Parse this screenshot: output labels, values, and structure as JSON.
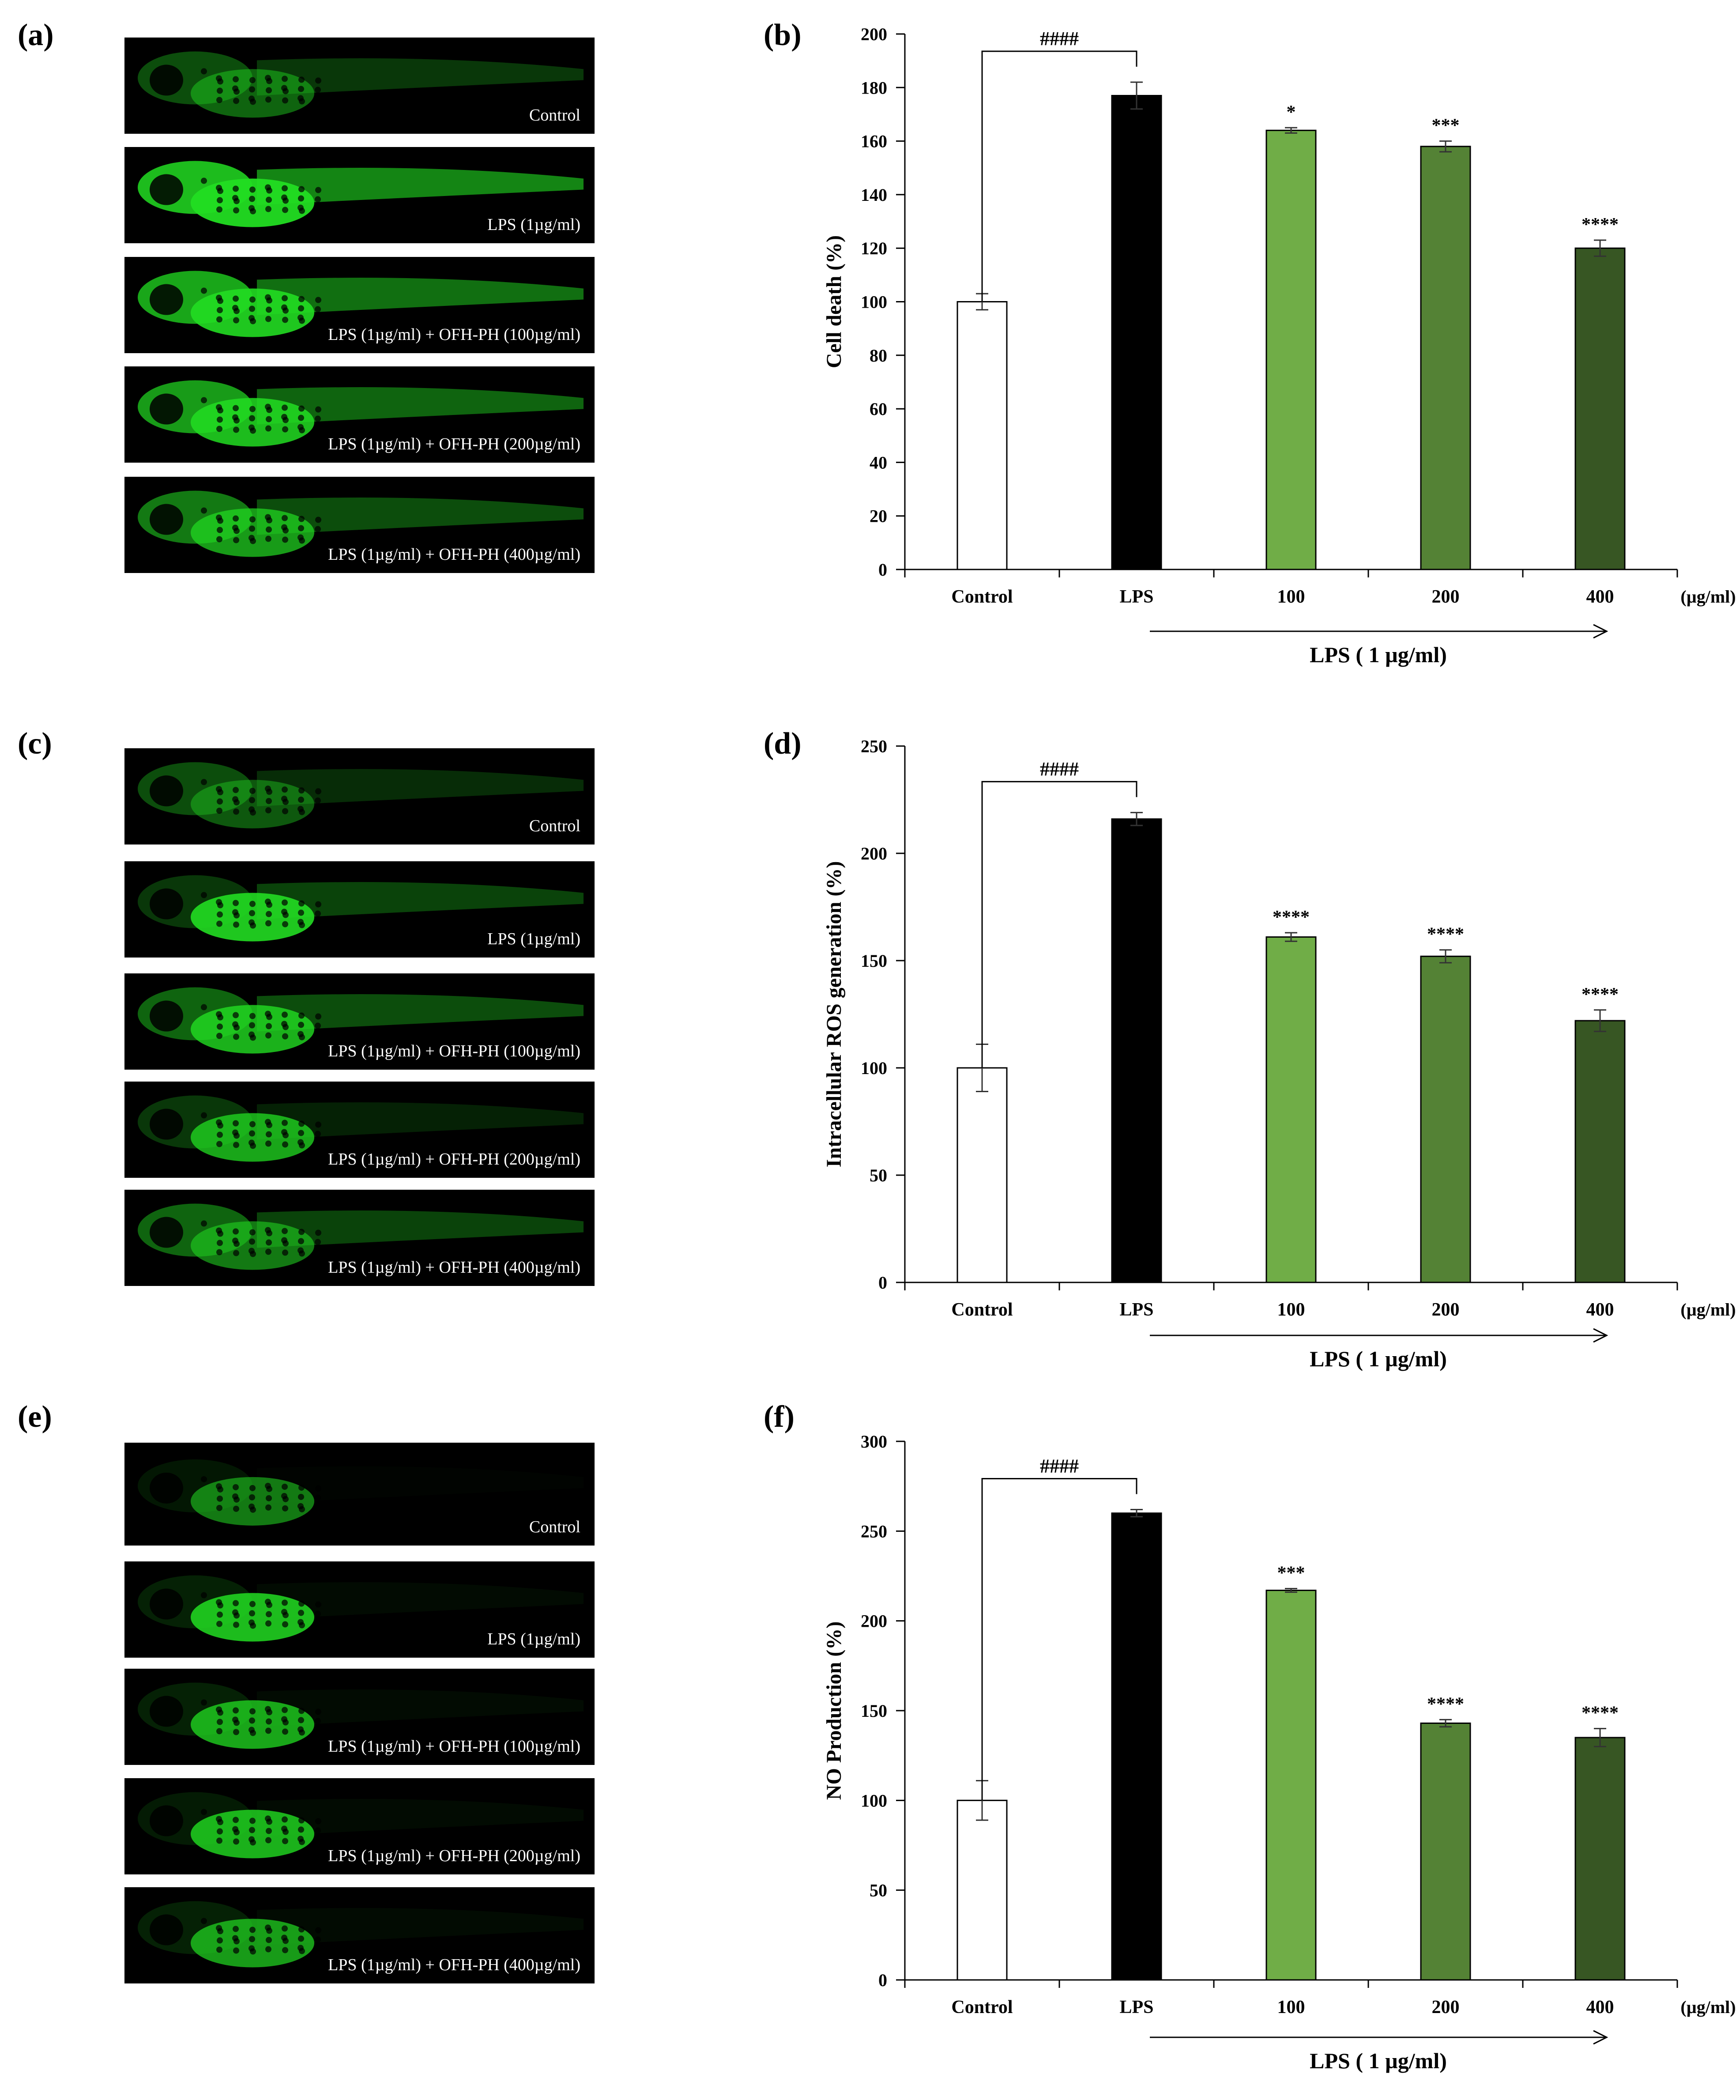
{
  "panels": {
    "a": "(a)",
    "b": "(b)",
    "c": "(c)",
    "d": "(d)",
    "e": "(e)",
    "f": "(f)"
  },
  "image_captions": [
    "Control",
    "LPS (1µg/ml)",
    "LPS (1µg/ml) + OFH-PH (100µg/ml)",
    "LPS (1µg/ml) + OFH-PH (200µg/ml)",
    "LPS (1µg/ml) + OFH-PH (400µg/ml)"
  ],
  "colors": {
    "control": "#ffffff",
    "lps": "#000000",
    "c100": "#70ad47",
    "c200": "#548235",
    "c400": "#375623",
    "fluorescence": "#22dd22"
  },
  "chart_data": [
    {
      "type": "bar",
      "ylabel": "Cell death (%)",
      "categories": [
        "Control",
        "LPS",
        "100",
        "200",
        "400"
      ],
      "unit_label": "(µg/ml)",
      "group_label": "LPS ( 1 µg/ml)",
      "values": [
        100,
        177,
        164,
        158,
        120
      ],
      "errors": [
        3,
        5,
        1,
        2,
        3
      ],
      "significance": [
        "",
        "",
        "*",
        "***",
        "****"
      ],
      "bracket_label": "####",
      "ylim": [
        0,
        200
      ],
      "yticks": [
        0,
        20,
        40,
        60,
        80,
        100,
        120,
        140,
        160,
        180,
        200
      ]
    },
    {
      "type": "bar",
      "ylabel": "Intracellular  ROS generation (%)",
      "categories": [
        "Control",
        "LPS",
        "100",
        "200",
        "400"
      ],
      "unit_label": "(µg/ml)",
      "group_label": "LPS ( 1 µg/ml)",
      "values": [
        100,
        216,
        161,
        152,
        122
      ],
      "errors": [
        11,
        3,
        2,
        3,
        5
      ],
      "significance": [
        "",
        "",
        "****",
        "****",
        "****"
      ],
      "bracket_label": "####",
      "ylim": [
        0,
        250
      ],
      "yticks": [
        0,
        50,
        100,
        150,
        200,
        250
      ]
    },
    {
      "type": "bar",
      "ylabel": "NO Production  (%)",
      "categories": [
        "Control",
        "LPS",
        "100",
        "200",
        "400"
      ],
      "unit_label": "(µg/ml)",
      "group_label": "LPS ( 1 µg/ml)",
      "values": [
        100,
        260,
        217,
        143,
        135
      ],
      "errors": [
        11,
        2,
        1,
        2,
        5
      ],
      "significance": [
        "",
        "",
        "***",
        "****",
        "****"
      ],
      "bracket_label": "####",
      "ylim": [
        0,
        300
      ],
      "yticks": [
        0,
        50,
        100,
        150,
        200,
        250,
        300
      ]
    }
  ]
}
